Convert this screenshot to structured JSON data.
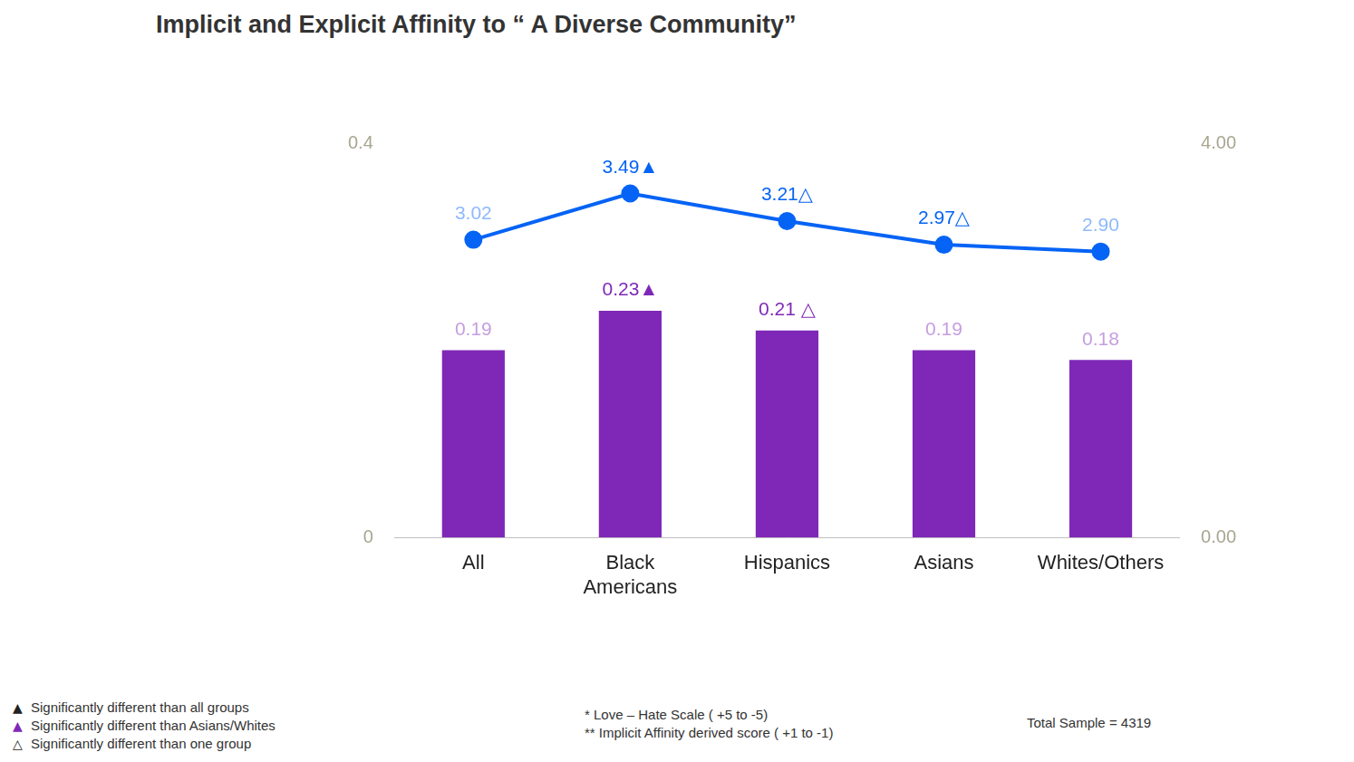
{
  "chart_data": {
    "type": "bar",
    "title": "Implicit and Explicit Affinity to “ A Diverse Community”",
    "categories": [
      "All",
      "Black Americans",
      "Hispanics",
      "Asians",
      "Whites/Others"
    ],
    "series": [
      {
        "type": "bar",
        "color": "#7f28b8",
        "values": [
          0.19,
          0.23,
          0.21,
          0.19,
          0.18
        ],
        "value_labels": [
          "0.19",
          "0.23▲",
          "0.21 △",
          "0.19",
          "0.18"
        ]
      },
      {
        "type": "line",
        "axis": "y2",
        "color": "#0563f5",
        "marker": "circle",
        "line_style": "solid",
        "values": [
          3.02,
          3.49,
          3.21,
          2.97,
          2.9
        ],
        "value_labels": [
          "3.02",
          "3.49▲",
          "3.21△",
          "2.97△",
          "2.90"
        ]
      }
    ],
    "ylim": [
      0,
      0.4
    ],
    "yticks": [
      0,
      0.4
    ],
    "y2lim": [
      0,
      4
    ],
    "y2ticks": [
      {
        "value": 0,
        "label": "0.00"
      },
      {
        "value": 4,
        "label": "4.00"
      }
    ],
    "grid": false,
    "data_labels": true,
    "significance_key": [
      {
        "symbol": "▲",
        "color": "#222222",
        "label": "Significantly different than all groups"
      },
      {
        "symbol": "▲",
        "color": "#7f28b8",
        "label": "Significantly different than Asians/Whites"
      },
      {
        "symbol": "△",
        "color": "#222222",
        "label": "Significantly different than one group"
      }
    ],
    "scale_notes": [
      "* Love – Hate Scale ( +5 to -5)",
      "** Implicit Affinity  derived score ( +1 to -1)"
    ],
    "sample_note": "Total  Sample  = 4319"
  }
}
